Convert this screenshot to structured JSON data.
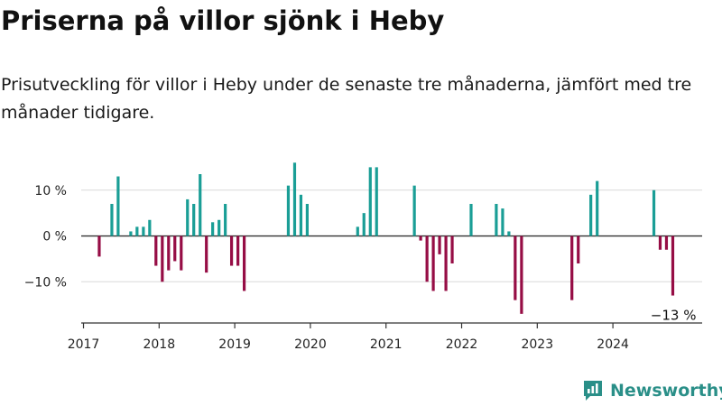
{
  "header": {
    "title": "Priserna på villor sjönk i Heby",
    "subtitle": "Prisutveckling för villor i Heby under de senaste tre månaderna, jämfört med tre månader tidigare."
  },
  "brand": {
    "name": "Newsworthy",
    "color": "#2a8f88"
  },
  "colors": {
    "positive": "#1a9e96",
    "negative": "#960d45",
    "grid": "#d9d9d9",
    "axis": "#333333"
  },
  "chart_data": {
    "type": "bar",
    "title": "Priserna på villor sjönk i Heby",
    "xlabel": "",
    "ylabel": "",
    "ylim": [
      -19,
      20
    ],
    "y_ticks": [
      {
        "value": 10,
        "label": "10 %"
      },
      {
        "value": 0,
        "label": "0 %"
      },
      {
        "value": -10,
        "label": "−10 %"
      }
    ],
    "x_ticks": [
      {
        "value": 2017.0,
        "label": "2017"
      },
      {
        "value": 2018.0,
        "label": "2018"
      },
      {
        "value": 2019.0,
        "label": "2019"
      },
      {
        "value": 2020.0,
        "label": "2020"
      },
      {
        "value": 2021.0,
        "label": "2021"
      },
      {
        "value": 2022.0,
        "label": "2022"
      },
      {
        "value": 2023.0,
        "label": "2023"
      },
      {
        "value": 2024.0,
        "label": "2024"
      }
    ],
    "xlim": [
      2016.97,
      2025.18
    ],
    "series": [
      {
        "name": "Prisutveckling",
        "points": [
          {
            "x": 2017.208,
            "y": -4.5
          },
          {
            "x": 2017.375,
            "y": 7.0
          },
          {
            "x": 2017.458,
            "y": 13.0
          },
          {
            "x": 2017.625,
            "y": 1.0
          },
          {
            "x": 2017.708,
            "y": 2.0
          },
          {
            "x": 2017.792,
            "y": 2.0
          },
          {
            "x": 2017.875,
            "y": 3.5
          },
          {
            "x": 2017.958,
            "y": -6.5
          },
          {
            "x": 2018.042,
            "y": -10.0
          },
          {
            "x": 2018.125,
            "y": -7.5
          },
          {
            "x": 2018.208,
            "y": -5.5
          },
          {
            "x": 2018.292,
            "y": -7.5
          },
          {
            "x": 2018.375,
            "y": 8.0
          },
          {
            "x": 2018.458,
            "y": 7.0
          },
          {
            "x": 2018.542,
            "y": 13.5
          },
          {
            "x": 2018.625,
            "y": -8.0
          },
          {
            "x": 2018.708,
            "y": 3.0
          },
          {
            "x": 2018.792,
            "y": 3.5
          },
          {
            "x": 2018.875,
            "y": 7.0
          },
          {
            "x": 2018.958,
            "y": -6.5
          },
          {
            "x": 2019.042,
            "y": -6.5
          },
          {
            "x": 2019.125,
            "y": -12.0
          },
          {
            "x": 2019.708,
            "y": 11.0
          },
          {
            "x": 2019.792,
            "y": 16.0
          },
          {
            "x": 2019.875,
            "y": 9.0
          },
          {
            "x": 2019.958,
            "y": 7.0
          },
          {
            "x": 2020.625,
            "y": 2.0
          },
          {
            "x": 2020.708,
            "y": 5.0
          },
          {
            "x": 2020.792,
            "y": 15.0
          },
          {
            "x": 2020.875,
            "y": 15.0
          },
          {
            "x": 2021.375,
            "y": 11.0
          },
          {
            "x": 2021.458,
            "y": -1.0
          },
          {
            "x": 2021.542,
            "y": -10.0
          },
          {
            "x": 2021.625,
            "y": -12.0
          },
          {
            "x": 2021.708,
            "y": -4.0
          },
          {
            "x": 2021.792,
            "y": -12.0
          },
          {
            "x": 2021.875,
            "y": -6.0
          },
          {
            "x": 2022.125,
            "y": 7.0
          },
          {
            "x": 2022.458,
            "y": 7.0
          },
          {
            "x": 2022.542,
            "y": 6.0
          },
          {
            "x": 2022.625,
            "y": 1.0
          },
          {
            "x": 2022.708,
            "y": -14.0
          },
          {
            "x": 2022.792,
            "y": -17.0
          },
          {
            "x": 2023.458,
            "y": -14.0
          },
          {
            "x": 2023.542,
            "y": -6.0
          },
          {
            "x": 2023.708,
            "y": 9.0
          },
          {
            "x": 2023.792,
            "y": 12.0
          },
          {
            "x": 2024.542,
            "y": 10.0
          },
          {
            "x": 2024.625,
            "y": -3.0
          },
          {
            "x": 2024.708,
            "y": -3.0
          },
          {
            "x": 2024.792,
            "y": -13.0
          }
        ]
      }
    ],
    "annotations": [
      {
        "text": "−13 %",
        "x": 2024.792,
        "y": -13.0
      }
    ]
  }
}
